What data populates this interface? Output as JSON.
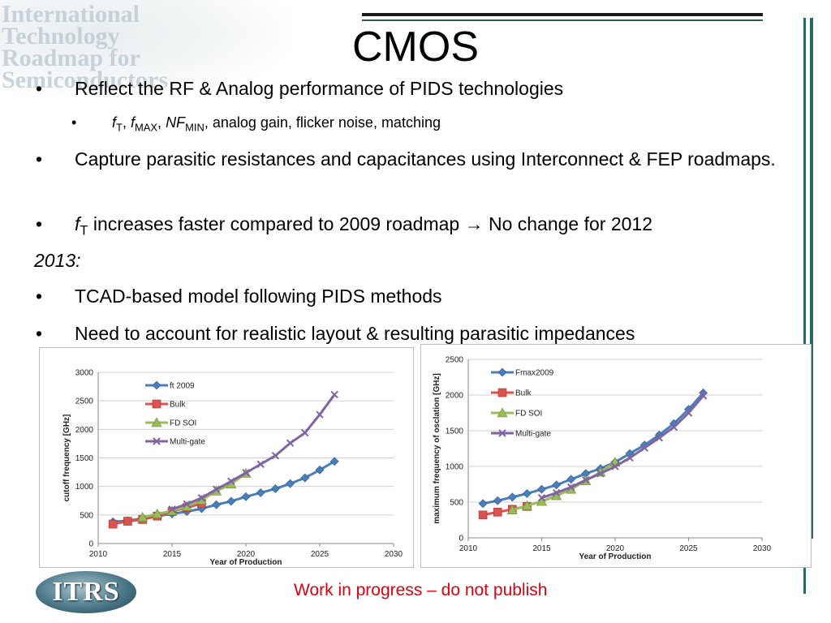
{
  "slide": {
    "title": "CMOS",
    "logo_lines": [
      "International",
      "Technology",
      "Roadmap for",
      "Semiconductors"
    ],
    "bullets": {
      "b1": "Reflect the RF & Analog performance of PIDS technologies",
      "sub1_ft_base": "f",
      "sub1_ft_sub": "T",
      "sub1_sep1": ", ",
      "sub1_fmax_base": "f",
      "sub1_fmax_sub": "MAX",
      "sub1_sep2": ", ",
      "sub1_nf_base": "NF",
      "sub1_nf_sub": "MIN",
      "sub1_rest": ", analog gain, flicker noise, matching",
      "b2": "Capture parasitic resistances and capacitances using Interconnect & FEP roadmaps.",
      "b3_base": "f",
      "b3_sub": "T",
      "b3_rest": " increases faster compared to 2009 roadmap → No change for 2012",
      "year_label": "2013:",
      "b4": "TCAD-based model following PIDS methods",
      "b5": "Need to account for realistic layout & resulting parasitic impedances"
    },
    "bullet_symbol": "•",
    "footer_logo": "ITRS",
    "footer_note": "Work in progress – do not publish",
    "colors": {
      "ft2009": "#4a7ebb",
      "bulk": "#d9534f",
      "fdsoi": "#9bbb59",
      "multigate": "#8064a2",
      "footer_note": "#e0000f",
      "accent_bar": "#2c6766"
    }
  },
  "chart_data": [
    {
      "type": "line",
      "xlabel": "Year of Production",
      "ylabel": "cutoff frequency [GHz]",
      "xlim": [
        2010,
        2030
      ],
      "ylim": [
        0,
        3000
      ],
      "xticks": [
        2010,
        2015,
        2020,
        2025,
        2030
      ],
      "yticks": [
        0,
        500,
        1000,
        1500,
        2000,
        2500,
        3000
      ],
      "legend_position": "top-left",
      "grid": true,
      "series": [
        {
          "name": "ft 2009",
          "color": "#4a7ebb",
          "marker": "diamond",
          "x": [
            2011,
            2012,
            2013,
            2014,
            2015,
            2016,
            2017,
            2018,
            2019,
            2020,
            2021,
            2022,
            2023,
            2024,
            2025,
            2026
          ],
          "y": [
            380,
            400,
            440,
            480,
            520,
            560,
            610,
            680,
            740,
            820,
            890,
            960,
            1050,
            1150,
            1290,
            1440
          ]
        },
        {
          "name": "Bulk",
          "color": "#d9534f",
          "marker": "square",
          "x": [
            2011,
            2012,
            2013,
            2014,
            2015,
            2016,
            2017
          ],
          "y": [
            340,
            390,
            420,
            480,
            560,
            630,
            700
          ]
        },
        {
          "name": "FD SOI",
          "color": "#9bbb59",
          "marker": "triangle",
          "x": [
            2013,
            2014,
            2015,
            2016,
            2017,
            2018,
            2019,
            2020
          ],
          "y": [
            460,
            520,
            570,
            650,
            760,
            920,
            1040,
            1230
          ]
        },
        {
          "name": "Multi-gate",
          "color": "#8064a2",
          "marker": "x",
          "x": [
            2015,
            2016,
            2017,
            2018,
            2019,
            2020,
            2021,
            2022,
            2023,
            2024,
            2025,
            2026
          ],
          "y": [
            600,
            690,
            800,
            950,
            1090,
            1240,
            1390,
            1540,
            1760,
            1940,
            2260,
            2610
          ]
        }
      ]
    },
    {
      "type": "line",
      "xlabel": "Year of Production",
      "ylabel": "maximum frequency of osclation [GHz]",
      "xlim": [
        2010,
        2030
      ],
      "ylim": [
        0,
        2500
      ],
      "xticks": [
        2010,
        2015,
        2020,
        2025,
        2030
      ],
      "yticks": [
        0,
        500,
        1000,
        1500,
        2000,
        2500
      ],
      "legend_position": "top-left",
      "grid": true,
      "series": [
        {
          "name": "Fmax2009",
          "color": "#4a7ebb",
          "marker": "diamond",
          "x": [
            2011,
            2012,
            2013,
            2014,
            2015,
            2016,
            2017,
            2018,
            2019,
            2020,
            2021,
            2022,
            2023,
            2024,
            2025,
            2026
          ],
          "y": [
            480,
            520,
            570,
            620,
            680,
            740,
            820,
            900,
            970,
            1060,
            1180,
            1300,
            1440,
            1600,
            1800,
            2030
          ]
        },
        {
          "name": "Bulk",
          "color": "#d9534f",
          "marker": "square",
          "x": [
            2011,
            2012,
            2013,
            2014
          ],
          "y": [
            320,
            360,
            400,
            440
          ]
        },
        {
          "name": "FD SOI",
          "color": "#9bbb59",
          "marker": "triangle",
          "x": [
            2013,
            2014,
            2015,
            2016,
            2017,
            2018,
            2019,
            2020
          ],
          "y": [
            390,
            450,
            510,
            590,
            680,
            800,
            920,
            1060
          ]
        },
        {
          "name": "Multi-gate",
          "color": "#8064a2",
          "marker": "x",
          "x": [
            2015,
            2016,
            2017,
            2018,
            2019,
            2020,
            2021,
            2022,
            2023,
            2024,
            2025,
            2026
          ],
          "y": [
            560,
            630,
            710,
            810,
            900,
            1000,
            1120,
            1260,
            1400,
            1550,
            1750,
            1990
          ]
        }
      ]
    }
  ]
}
